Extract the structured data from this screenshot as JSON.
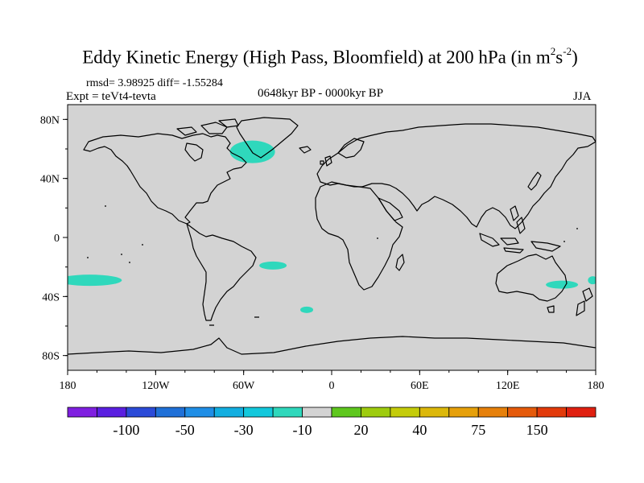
{
  "title": {
    "main": "Eddy Kinetic Energy (High Pass, Bloomfield) at 200 hPa (in m",
    "sup1": "2",
    "mid": "s",
    "sup2": "-2",
    "end": ")"
  },
  "stats_line": "rmsd= 3.98925 diff= -1.55284",
  "experiment": "Expt = teVt4-tevta",
  "period": "0648kyr BP - 0000kyr BP",
  "season": "JJA",
  "map": {
    "projection": "cylindrical-equidistant",
    "lon_range": [
      -180,
      180
    ],
    "lat_range": [
      -90,
      90
    ],
    "background_color": "#d3d3d3",
    "coastline_color": "#000000",
    "anomaly_color": "#2fd8bc",
    "x_ticks": [
      {
        "lon": -180,
        "label": "180"
      },
      {
        "lon": -120,
        "label": "120W"
      },
      {
        "lon": -60,
        "label": "60W"
      },
      {
        "lon": 0,
        "label": "0"
      },
      {
        "lon": 60,
        "label": "60E"
      },
      {
        "lon": 120,
        "label": "120E"
      },
      {
        "lon": 180,
        "label": "180"
      }
    ],
    "y_ticks": [
      {
        "lat": 80,
        "label": "80N"
      },
      {
        "lat": 40,
        "label": "40N"
      },
      {
        "lat": 0,
        "label": "0"
      },
      {
        "lat": -40,
        "label": "40S"
      },
      {
        "lat": -80,
        "label": "80S"
      }
    ],
    "anomaly_regions": [
      {
        "name": "north-atlantic-labrador",
        "value_class": "-10 to -30",
        "lon": -54,
        "lat": 58
      },
      {
        "name": "south-pacific-west",
        "value_class": "-10 to -30",
        "lon": -165,
        "lat": -29
      },
      {
        "name": "south-atlantic-brazil-coast",
        "value_class": "-10 to -30",
        "lon": -40,
        "lat": -19
      },
      {
        "name": "south-atlantic-small",
        "value_class": "-10 to -30",
        "lon": -17,
        "lat": -49
      },
      {
        "name": "tasman-sea",
        "value_class": "-10 to -30",
        "lon": 157,
        "lat": -32
      },
      {
        "name": "south-pacific-east-edge",
        "value_class": "-10 to -30",
        "lon": 178,
        "lat": -29
      }
    ]
  },
  "colorbar": {
    "colors": [
      "#7f1fe0",
      "#5a1fe0",
      "#2b4ad8",
      "#1f70d8",
      "#1f8ee6",
      "#12aee0",
      "#12c8dc",
      "#2fd8bc",
      "#d3d3d3",
      "#5ec71e",
      "#9ecc0e",
      "#c4cc0a",
      "#dcb80a",
      "#e6a00a",
      "#e6800a",
      "#e55a0a",
      "#e23a0a",
      "#e02010"
    ],
    "labels": [
      {
        "boundary": 2,
        "text": "-100"
      },
      {
        "boundary": 4,
        "text": "-50"
      },
      {
        "boundary": 6,
        "text": "-30"
      },
      {
        "boundary": 8,
        "text": "-10"
      },
      {
        "boundary": 10,
        "text": "20"
      },
      {
        "boundary": 12,
        "text": "40"
      },
      {
        "boundary": 14,
        "text": "75"
      },
      {
        "boundary": 16,
        "text": "150"
      }
    ]
  }
}
